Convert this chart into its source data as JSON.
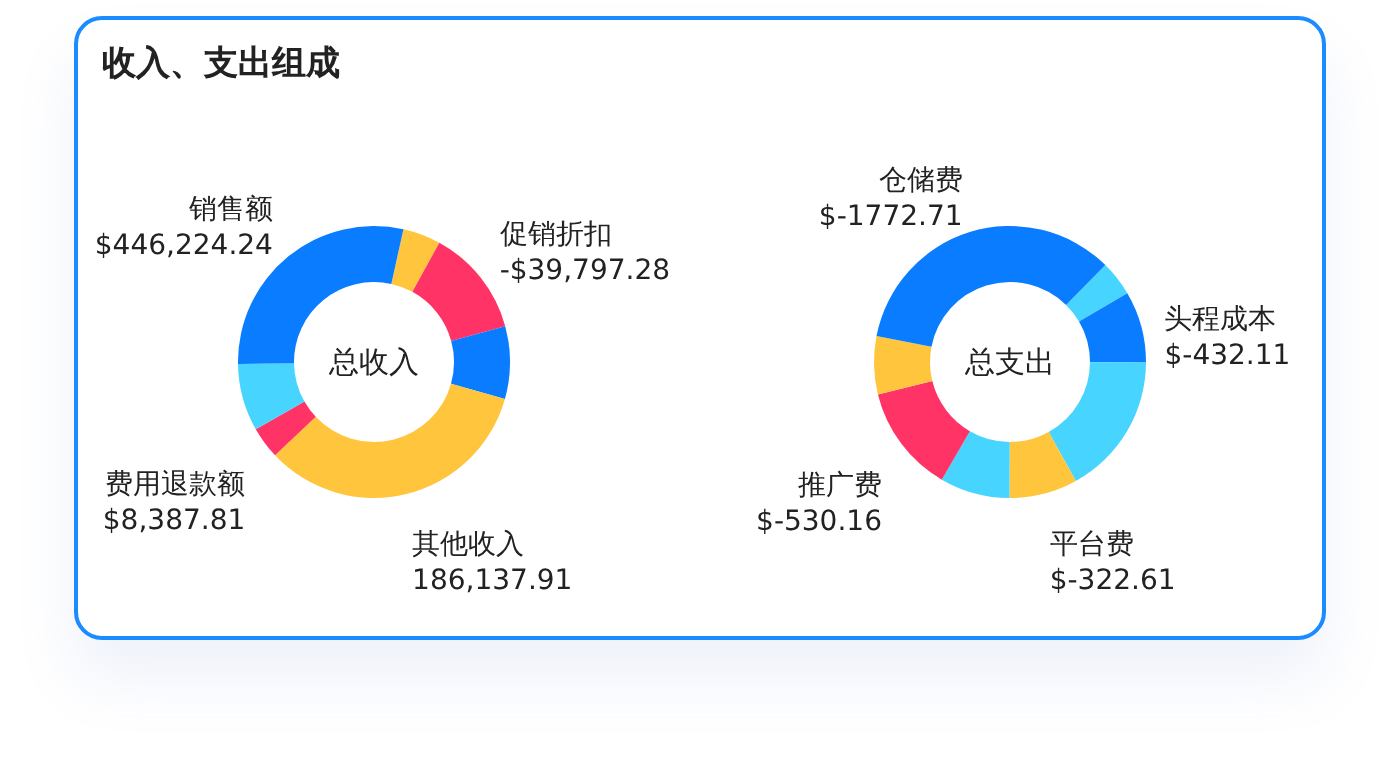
{
  "chart_data": [
    {
      "type": "donut",
      "title": "收入、支出组成",
      "categories": [
        null,
        "促销折扣",
        null,
        "其他收入",
        "费用退款额",
        null,
        "销售额"
      ],
      "values": [
        4.5,
        12.8,
        8.6,
        33.6,
        3.8,
        8.0,
        28.7
      ],
      "colors": [
        "#ffc53d",
        "#ff3366",
        "#0a7cff",
        "#ffc53d",
        "#ff3366",
        "#47d4ff",
        "#0a7cff"
      ],
      "annotations": [
        "总收入",
        {
          "text": "-$39,797.28",
          "x": "促销折扣"
        },
        {
          "text": "186,137.91",
          "x": "其他收入"
        },
        {
          "text": "$8,387.81",
          "x": "费用退款额"
        },
        {
          "text": "$446,224.24",
          "x": "销售额"
        }
      ]
    },
    {
      "type": "donut",
      "categories": [
        null,
        "头程成本",
        null,
        "平台费",
        null,
        "推广费",
        null,
        "仓储费"
      ],
      "values": [
        4.2,
        8.5,
        16.9,
        8.1,
        8.3,
        12.8,
        6.9,
        34.3
      ],
      "colors": [
        "#47d4ff",
        "#0a7cff",
        "#47d4ff",
        "#ffc53d",
        "#47d4ff",
        "#ff3366",
        "#ffc53d",
        "#0a7cff"
      ],
      "annotations": [
        "总支出",
        {
          "text": "$-432.11",
          "x": "头程成本"
        },
        {
          "text": "$-322.61",
          "x": "平台费"
        },
        {
          "text": "$-530.16",
          "x": "推广费"
        },
        {
          "text": "$-1772.71",
          "x": "仓储费"
        }
      ]
    }
  ]
}
